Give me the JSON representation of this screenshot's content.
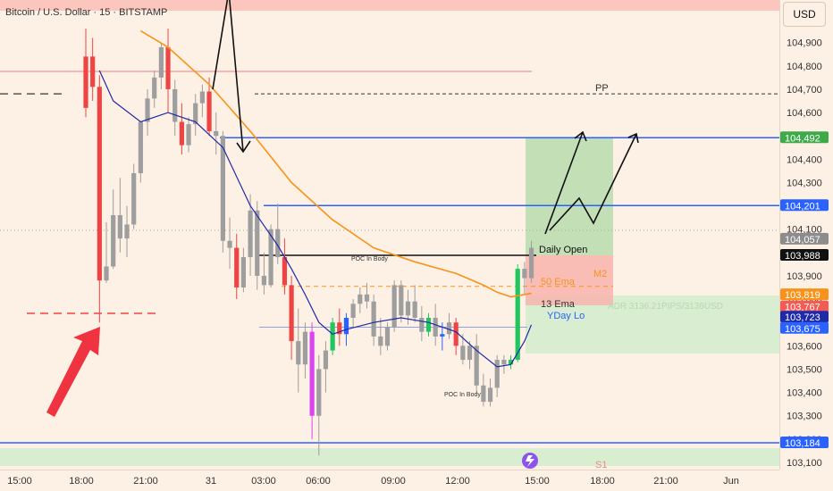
{
  "header": {
    "symbol": "Bitcoin / U.S. Dollar · 15 · BITSTAMP",
    "currency_button": "USD"
  },
  "colors": {
    "up": "#22c55e",
    "down": "#ef4444",
    "neutral": "#9e9e9e",
    "blue": "#2962ff",
    "purple_bar": "#d946ef",
    "ema50": "#f7931a",
    "ema13": "#1e2aa8",
    "black": "#111111",
    "take_profit_zone": "#b9dcae",
    "stop_zone": "#f8b4ae",
    "adr_zone": "#cfeccb"
  },
  "chart_data": {
    "type": "candlestick",
    "x_ticks": [
      "15:00",
      "18:00",
      "21:00",
      "31",
      "03:00",
      "06:00",
      "09:00",
      "12:00",
      "15:00",
      "18:00",
      "21:00",
      "Jun"
    ],
    "y_ticks": [
      "103,100",
      "103,200",
      "103,300",
      "103,400",
      "103,500",
      "103,600",
      "103,700",
      "103,800",
      "103,900",
      "104,000",
      "104,100",
      "104,200",
      "104,300",
      "104,400",
      "104,500",
      "104,600",
      "104,700",
      "104,800",
      "104,900"
    ],
    "ylim": [
      103050,
      105000
    ],
    "candles": [
      [
        0,
        104620,
        104960,
        104580,
        104840,
        "d"
      ],
      [
        1,
        104840,
        104920,
        104650,
        104710,
        "d"
      ],
      [
        2,
        104710,
        104760,
        103700,
        103880,
        "d"
      ],
      [
        3,
        103880,
        104130,
        103870,
        103940,
        "n"
      ],
      [
        4,
        103940,
        104270,
        103930,
        104160,
        "n"
      ],
      [
        5,
        104160,
        104320,
        104000,
        104060,
        "n"
      ],
      [
        6,
        104060,
        104200,
        103980,
        104120,
        "n"
      ],
      [
        7,
        104120,
        104380,
        104100,
        104340,
        "n"
      ],
      [
        8,
        104340,
        104560,
        104300,
        104560,
        "n"
      ],
      [
        9,
        104560,
        104700,
        104500,
        104660,
        "n"
      ],
      [
        10,
        104660,
        104780,
        104620,
        104750,
        "n"
      ],
      [
        11,
        104750,
        104900,
        104700,
        104880,
        "n"
      ],
      [
        12,
        104880,
        104960,
        104600,
        104700,
        "d"
      ],
      [
        13,
        104700,
        104740,
        104500,
        104560,
        "n"
      ],
      [
        14,
        104560,
        104640,
        104420,
        104460,
        "d"
      ],
      [
        15,
        104460,
        104580,
        104430,
        104550,
        "n"
      ],
      [
        16,
        104550,
        104680,
        104500,
        104640,
        "n"
      ],
      [
        17,
        104640,
        104720,
        104580,
        104690,
        "n"
      ],
      [
        18,
        104690,
        104750,
        104500,
        104520,
        "d"
      ],
      [
        19,
        104520,
        104600,
        104420,
        104500,
        "n"
      ],
      [
        20,
        104500,
        104520,
        104000,
        104050,
        "n"
      ],
      [
        21,
        104050,
        104150,
        103930,
        104020,
        "n"
      ],
      [
        22,
        104020,
        104080,
        103800,
        103850,
        "d"
      ],
      [
        23,
        103850,
        104020,
        103830,
        103980,
        "n"
      ],
      [
        24,
        103980,
        104250,
        103900,
        104180,
        "n"
      ],
      [
        25,
        104180,
        104220,
        103840,
        103900,
        "n"
      ],
      [
        26,
        103900,
        104000,
        103820,
        103860,
        "n"
      ],
      [
        27,
        103860,
        104120,
        103850,
        104100,
        "n"
      ],
      [
        28,
        104100,
        104210,
        103950,
        103980,
        "n"
      ],
      [
        29,
        103980,
        104060,
        103820,
        103860,
        "d"
      ],
      [
        30,
        103860,
        103900,
        103540,
        103620,
        "d"
      ],
      [
        31,
        103620,
        103760,
        103400,
        103520,
        "n"
      ],
      [
        32,
        103520,
        103700,
        103460,
        103660,
        "n"
      ],
      [
        33,
        103660,
        103700,
        103200,
        103300,
        "p"
      ],
      [
        34,
        103300,
        103560,
        103130,
        103500,
        "n"
      ],
      [
        35,
        103500,
        103620,
        103400,
        103580,
        "n"
      ],
      [
        36,
        103580,
        103720,
        103560,
        103700,
        "u"
      ],
      [
        37,
        103700,
        103760,
        103600,
        103650,
        "d"
      ],
      [
        38,
        103650,
        103740,
        103600,
        103720,
        "b"
      ],
      [
        39,
        103720,
        103800,
        103680,
        103780,
        "n"
      ],
      [
        40,
        103780,
        103850,
        103740,
        103820,
        "n"
      ],
      [
        41,
        103820,
        103870,
        103760,
        103790,
        "n"
      ],
      [
        42,
        103790,
        103820,
        103600,
        103640,
        "n"
      ],
      [
        43,
        103640,
        103720,
        103560,
        103600,
        "n"
      ],
      [
        44,
        103600,
        103700,
        103580,
        103680,
        "n"
      ],
      [
        45,
        103680,
        103880,
        103660,
        103860,
        "n"
      ],
      [
        46,
        103860,
        103880,
        103700,
        103730,
        "n"
      ],
      [
        47,
        103730,
        103840,
        103690,
        103790,
        "n"
      ],
      [
        48,
        103790,
        103860,
        103700,
        103720,
        "n"
      ],
      [
        49,
        103720,
        103770,
        103620,
        103660,
        "n"
      ],
      [
        50,
        103660,
        103740,
        103640,
        103720,
        "u"
      ],
      [
        51,
        103720,
        103780,
        103600,
        103640,
        "n"
      ],
      [
        52,
        103640,
        103700,
        103580,
        103650,
        "b"
      ],
      [
        53,
        103650,
        103740,
        103630,
        103700,
        "n"
      ],
      [
        54,
        103700,
        103720,
        103560,
        103600,
        "d"
      ],
      [
        55,
        103600,
        103650,
        103520,
        103540,
        "n"
      ],
      [
        56,
        103540,
        103620,
        103500,
        103600,
        "n"
      ],
      [
        57,
        103600,
        103650,
        103400,
        103430,
        "n"
      ],
      [
        58,
        103430,
        103480,
        103340,
        103360,
        "n"
      ],
      [
        59,
        103360,
        103460,
        103340,
        103420,
        "n"
      ],
      [
        60,
        103420,
        103560,
        103380,
        103540,
        "n"
      ],
      [
        61,
        103540,
        103560,
        103480,
        103520,
        "n"
      ],
      [
        62,
        103520,
        103560,
        103500,
        103540,
        "u"
      ],
      [
        63,
        103540,
        103950,
        103530,
        103930,
        "u"
      ],
      [
        64,
        103930,
        103960,
        103820,
        103890,
        "n"
      ],
      [
        65,
        103890,
        104050,
        103870,
        104020,
        "n"
      ]
    ],
    "lines": {
      "resistance_blue": 104492,
      "mid_blue": 104201,
      "support_blue": 103184,
      "daily_open": 103988,
      "pivot_pp": 104680,
      "m2_dashed": 103855,
      "yday_low": 103680
    },
    "ema50": [
      [
        8,
        104950
      ],
      [
        12,
        104880
      ],
      [
        18,
        104720
      ],
      [
        24,
        104520
      ],
      [
        30,
        104300
      ],
      [
        36,
        104140
      ],
      [
        42,
        104020
      ],
      [
        48,
        103960
      ],
      [
        54,
        103910
      ],
      [
        58,
        103860
      ],
      [
        60,
        103830
      ],
      [
        62,
        103810
      ],
      [
        65,
        103825
      ]
    ],
    "ema13": [
      [
        2,
        104780
      ],
      [
        4,
        104650
      ],
      [
        8,
        104560
      ],
      [
        12,
        104600
      ],
      [
        16,
        104560
      ],
      [
        20,
        104450
      ],
      [
        24,
        104200
      ],
      [
        28,
        104030
      ],
      [
        30,
        103930
      ],
      [
        32,
        103820
      ],
      [
        34,
        103700
      ],
      [
        36,
        103650
      ],
      [
        38,
        103670
      ],
      [
        42,
        103700
      ],
      [
        46,
        103720
      ],
      [
        50,
        103700
      ],
      [
        54,
        103660
      ],
      [
        57,
        103580
      ],
      [
        60,
        103510
      ],
      [
        62,
        103520
      ],
      [
        64,
        103620
      ],
      [
        65,
        103690
      ]
    ],
    "price_tags": [
      {
        "label": "104,492",
        "value": 104492,
        "bg": "#3faa4a",
        "fg": "#ffffff"
      },
      {
        "label": "104,201",
        "value": 104201,
        "bg": "#2962ff",
        "fg": "#ffffff"
      },
      {
        "label": "104,057",
        "value": 104057,
        "bg": "#8c8c8c",
        "fg": "#ffffff"
      },
      {
        "label": "103,988",
        "value": 103988,
        "bg": "#111111",
        "fg": "#ffffff"
      },
      {
        "label": "103,819",
        "value": 103819,
        "bg": "#f7931a",
        "fg": "#ffffff"
      },
      {
        "label": "103,767",
        "value": 103767,
        "bg": "#f25c54",
        "fg": "#ffffff"
      },
      {
        "label": "103,723",
        "value": 103723,
        "bg": "#1e2aa8",
        "fg": "#ffffff"
      },
      {
        "label": "103,675",
        "value": 103675,
        "bg": "#2962ff",
        "fg": "#ffffff"
      },
      {
        "label": "103,184",
        "value": 103184,
        "bg": "#2962ff",
        "fg": "#ffffff"
      }
    ],
    "annotations": {
      "pp": "PP",
      "daily_open": "Daily Open",
      "m2": "M2",
      "ema50": "50 Ema",
      "ema13": "13 Ema",
      "yday_lo": "YDay Lo",
      "adr": "ADR 3136.21PIPS/3136USD",
      "poc1": "POC In Body",
      "poc2": "POC In Body",
      "s1": "S1"
    }
  }
}
